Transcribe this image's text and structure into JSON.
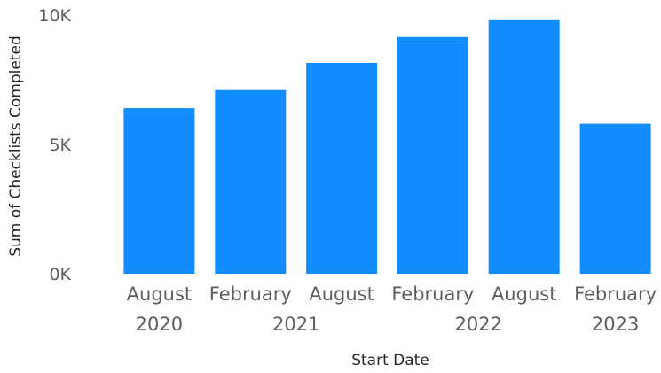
{
  "chart_data": {
    "type": "bar",
    "categories": [
      "August 2020",
      "February 2021",
      "August 2021",
      "February 2022",
      "August 2022",
      "February 2023"
    ],
    "values": [
      6400,
      7100,
      8150,
      9150,
      9800,
      5800
    ],
    "xlabel": "Start Date",
    "ylabel": "Sum of Checklists Completed",
    "ylim": [
      0,
      10000
    ],
    "yticks": [
      {
        "value": 0,
        "label": "0K"
      },
      {
        "value": 5000,
        "label": "5K"
      },
      {
        "value": 10000,
        "label": "10K"
      }
    ],
    "xtick_labels": {
      "months": [
        "August",
        "February",
        "August",
        "February",
        "August",
        "February"
      ],
      "years": [
        {
          "label": "2020",
          "from": 0,
          "to": 0
        },
        {
          "label": "2021",
          "from": 1,
          "to": 2
        },
        {
          "label": "2022",
          "from": 3,
          "to": 4
        },
        {
          "label": "2023",
          "from": 5,
          "to": 5
        }
      ]
    },
    "bar_color": "#118DFF",
    "grid": false,
    "legend": "none"
  }
}
